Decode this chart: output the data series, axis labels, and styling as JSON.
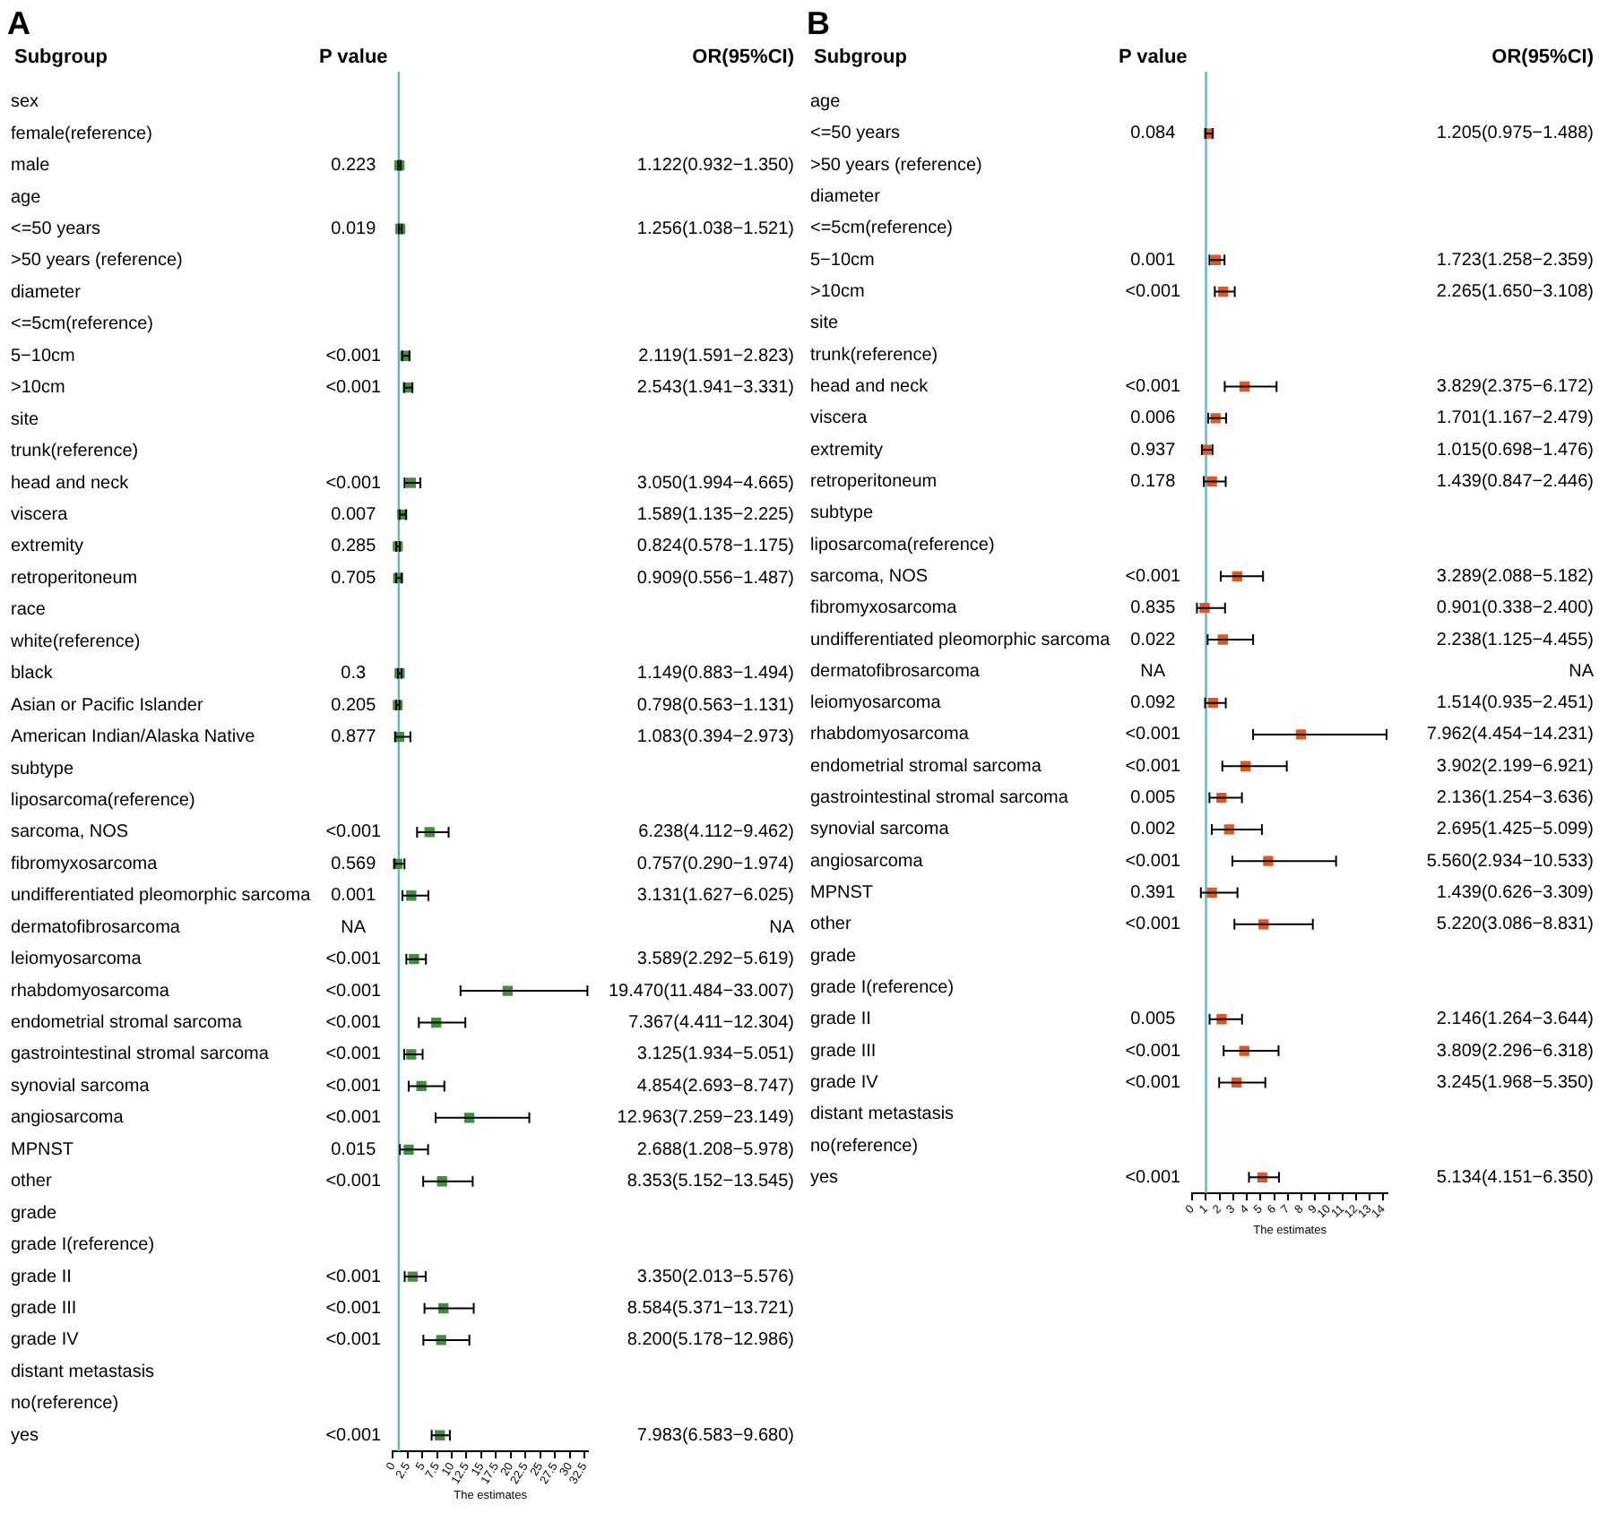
{
  "chart_data": [
    {
      "type": "scatter",
      "orientation": "horizontal",
      "title": "A",
      "xlabel": "The estimates",
      "marker": "square",
      "color": "#3f8f3f",
      "grid": false,
      "annotations": [
        "Subgroup",
        "P value",
        "OR(95%CI)",
        "0.223",
        "0.019",
        "<0.001",
        "<0.001",
        "<0.001",
        "0.007",
        "0.285",
        "0.705",
        "0.3",
        "0.205",
        "0.877",
        "<0.001",
        "0.569",
        "0.001",
        "NA",
        "<0.001",
        "<0.001",
        "<0.001",
        "<0.001",
        "<0.001",
        "<0.001",
        "0.015",
        "<0.001",
        "<0.001",
        "<0.001",
        "<0.001",
        "<0.001"
      ],
      "categories": [
        "sex",
        "female(reference)",
        "male",
        "age",
        "<=50 years",
        ">50 years (reference)",
        "diameter",
        "<=5cm(reference)",
        "5−10cm",
        ">10cm",
        "site",
        "trunk(reference)",
        "head and neck",
        "viscera",
        "extremity",
        "retroperitoneum",
        "race",
        "white(reference)",
        "black",
        "Asian or Pacific Islander",
        "American Indian/Alaska Native",
        "subtype",
        "liposarcoma(reference)",
        "sarcoma, NOS",
        "fibromyxosarcoma",
        "undifferentiated pleomorphic sarcoma",
        "dermatofibrosarcoma",
        "leiomyosarcoma",
        "rhabdomyosarcoma",
        "endometrial stromal sarcoma",
        "gastrointestinal stromal sarcoma",
        "synovial sarcoma",
        "angiosarcoma",
        "MPNST",
        "other",
        "grade",
        "grade I(reference)",
        "grade II",
        "grade III",
        "grade IV",
        "distant metastasis",
        "no(reference)",
        "yes"
      ],
      "values": [
        null,
        null,
        1.122,
        null,
        1.256,
        null,
        null,
        null,
        2.119,
        2.543,
        null,
        null,
        3.05,
        1.589,
        0.824,
        0.909,
        null,
        null,
        1.149,
        0.798,
        1.083,
        null,
        null,
        6.238,
        0.757,
        3.131,
        null,
        3.589,
        19.47,
        7.367,
        3.125,
        4.854,
        12.963,
        2.688,
        8.353,
        null,
        null,
        3.35,
        8.584,
        8.2,
        null,
        null,
        7.983
      ],
      "errors": [
        null,
        null,
        [
          0.932,
          1.35
        ],
        null,
        [
          1.038,
          1.521
        ],
        null,
        null,
        null,
        [
          1.591,
          2.823
        ],
        [
          1.941,
          3.331
        ],
        null,
        null,
        [
          1.994,
          4.665
        ],
        [
          1.135,
          2.225
        ],
        [
          0.578,
          1.175
        ],
        [
          0.556,
          1.487
        ],
        null,
        null,
        [
          0.883,
          1.494
        ],
        [
          0.563,
          1.131
        ],
        [
          0.394,
          2.973
        ],
        null,
        null,
        [
          4.112,
          9.462
        ],
        [
          0.29,
          1.974
        ],
        [
          1.627,
          6.025
        ],
        null,
        [
          2.292,
          5.619
        ],
        [
          11.484,
          33.007
        ],
        [
          4.411,
          12.304
        ],
        [
          1.934,
          5.051
        ],
        [
          2.693,
          8.747
        ],
        [
          7.259,
          23.149
        ],
        [
          1.208,
          5.978
        ],
        [
          5.152,
          13.545
        ],
        null,
        null,
        [
          2.013,
          5.576
        ],
        [
          5.371,
          13.721
        ],
        [
          5.178,
          12.986
        ],
        null,
        null,
        [
          6.583,
          9.68
        ]
      ],
      "value_labels": [
        null,
        null,
        "1.122(0.932−1.350)",
        null,
        "1.256(1.038−1.521)",
        null,
        null,
        null,
        "2.119(1.591−2.823)",
        "2.543(1.941−3.331)",
        null,
        null,
        "3.050(1.994−4.665)",
        "1.589(1.135−2.225)",
        "0.824(0.578−1.175)",
        "0.909(0.556−1.487)",
        null,
        null,
        "1.149(0.883−1.494)",
        "0.798(0.563−1.131)",
        "1.083(0.394−2.973)",
        null,
        null,
        "6.238(4.112−9.462)",
        "0.757(0.290−1.974)",
        "3.131(1.627−6.025)",
        "NA",
        "3.589(2.292−5.619)",
        "19.470(11.484−33.007)",
        "7.367(4.411−12.304)",
        "3.125(1.934−5.051)",
        "4.854(2.693−8.747)",
        "12.963(7.259−23.149)",
        "2.688(1.208−5.978)",
        "8.353(5.152−13.545)",
        null,
        null,
        "3.350(2.013−5.576)",
        "8.584(5.371−13.721)",
        "8.200(5.178−12.986)",
        null,
        null,
        "7.983(6.583−9.680)"
      ],
      "xlim": [
        0,
        33.1
      ],
      "xticks": [
        0,
        2.5,
        5,
        7.5,
        10,
        12.5,
        15,
        17.5,
        20,
        22.5,
        25,
        27.5,
        30,
        32.5
      ],
      "ref_lines": [
        {
          "axis": "x",
          "value": 1,
          "color": "#5fb8c6"
        }
      ]
    },
    {
      "type": "scatter",
      "orientation": "horizontal",
      "title": "B",
      "xlabel": "The estimates",
      "marker": "square",
      "color": "#e2571e",
      "grid": false,
      "annotations": [
        "Subgroup",
        "P value",
        "OR(95%CI)",
        "0.084",
        "0.001",
        "<0.001",
        "<0.001",
        "0.006",
        "0.937",
        "0.178",
        "<0.001",
        "0.835",
        "0.022",
        "NA",
        "0.092",
        "<0.001",
        "<0.001",
        "0.005",
        "0.002",
        "<0.001",
        "0.391",
        "<0.001",
        "0.005",
        "<0.001",
        "<0.001",
        "<0.001"
      ],
      "categories": [
        "age",
        "<=50 years",
        ">50 years (reference)",
        "diameter",
        "<=5cm(reference)",
        "5−10cm",
        ">10cm",
        "site",
        "trunk(reference)",
        "head and neck",
        "viscera",
        "extremity",
        "retroperitoneum",
        "subtype",
        "liposarcoma(reference)",
        "sarcoma, NOS",
        "fibromyxosarcoma",
        "undifferentiated pleomorphic sarcoma",
        "dermatofibrosarcoma",
        "leiomyosarcoma",
        "rhabdomyosarcoma",
        "endometrial stromal sarcoma",
        "gastrointestinal stromal sarcoma",
        "synovial sarcoma",
        "angiosarcoma",
        "MPNST",
        "other",
        "grade",
        "grade I(reference)",
        "grade II",
        "grade III",
        "grade IV",
        "distant metastasis",
        "no(reference)",
        "yes"
      ],
      "values": [
        null,
        1.205,
        null,
        null,
        null,
        1.723,
        2.265,
        null,
        null,
        3.829,
        1.701,
        1.015,
        1.439,
        null,
        null,
        3.289,
        0.901,
        2.238,
        null,
        1.514,
        7.962,
        3.902,
        2.136,
        2.695,
        5.56,
        1.439,
        5.22,
        null,
        null,
        2.146,
        3.809,
        3.245,
        null,
        null,
        5.134
      ],
      "errors": [
        null,
        [
          0.975,
          1.488
        ],
        null,
        null,
        null,
        [
          1.258,
          2.359
        ],
        [
          1.65,
          3.108
        ],
        null,
        null,
        [
          2.375,
          6.172
        ],
        [
          1.167,
          2.479
        ],
        [
          0.698,
          1.476
        ],
        [
          0.847,
          2.446
        ],
        null,
        null,
        [
          2.088,
          5.182
        ],
        [
          0.338,
          2.4
        ],
        [
          1.125,
          4.455
        ],
        null,
        [
          0.935,
          2.451
        ],
        [
          4.454,
          14.231
        ],
        [
          2.199,
          6.921
        ],
        [
          1.254,
          3.636
        ],
        [
          1.425,
          5.099
        ],
        [
          2.934,
          10.533
        ],
        [
          0.626,
          3.309
        ],
        [
          3.086,
          8.831
        ],
        null,
        null,
        [
          1.264,
          3.644
        ],
        [
          2.296,
          6.318
        ],
        [
          1.968,
          5.35
        ],
        null,
        null,
        [
          4.151,
          6.35
        ]
      ],
      "value_labels": [
        null,
        "1.205(0.975−1.488)",
        null,
        null,
        null,
        "1.723(1.258−2.359)",
        "2.265(1.650−3.108)",
        null,
        null,
        "3.829(2.375−6.172)",
        "1.701(1.167−2.479)",
        "1.015(0.698−1.476)",
        "1.439(0.847−2.446)",
        null,
        null,
        "3.289(2.088−5.182)",
        "0.901(0.338−2.400)",
        "2.238(1.125−4.455)",
        "NA",
        "1.514(0.935−2.451)",
        "7.962(4.454−14.231)",
        "3.902(2.199−6.921)",
        "2.136(1.254−3.636)",
        "2.695(1.425−5.099)",
        "5.560(2.934−10.533)",
        "1.439(0.626−3.309)",
        "5.220(3.086−8.831)",
        null,
        null,
        "2.146(1.264−3.644)",
        "3.809(2.296−6.318)",
        "3.245(1.968−5.350)",
        null,
        null,
        "5.134(4.151−6.350)"
      ],
      "xlim": [
        0,
        14.3
      ],
      "xticks": [
        0,
        1,
        2,
        3,
        4,
        5,
        6,
        7,
        8,
        9,
        10,
        11,
        12,
        13,
        14
      ],
      "ref_lines": [
        {
          "axis": "x",
          "value": 1,
          "color": "#5fb8c6"
        }
      ]
    }
  ]
}
